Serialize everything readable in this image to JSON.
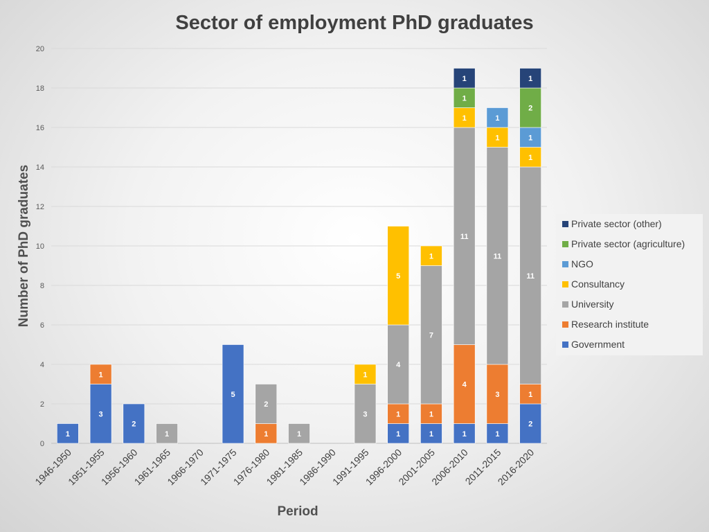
{
  "chart_data": {
    "type": "bar",
    "stacked": true,
    "title": "Sector of employment PhD graduates",
    "xlabel": "Period",
    "ylabel": "Number of PhD graduates",
    "ylim": [
      0,
      20
    ],
    "yticks": [
      0,
      2,
      4,
      6,
      8,
      10,
      12,
      14,
      16,
      18,
      20
    ],
    "grid": true,
    "legend_position": "right",
    "categories": [
      "1946-1950",
      "1951-1955",
      "1956-1960",
      "1961-1965",
      "1966-1970",
      "1971-1975",
      "1976-1980",
      "1981-1985",
      "1986-1990",
      "1991-1995",
      "1996-2000",
      "2001-2005",
      "2006-2010",
      "2011-2015",
      "2016-2020"
    ],
    "series": [
      {
        "name": "Government",
        "color": "#4472C4",
        "values": [
          1,
          3,
          2,
          0,
          0,
          5,
          0,
          0,
          0,
          0,
          1,
          1,
          1,
          1,
          2
        ]
      },
      {
        "name": "Research institute",
        "color": "#ED7D31",
        "values": [
          0,
          1,
          0,
          0,
          0,
          0,
          1,
          0,
          0,
          0,
          1,
          1,
          4,
          3,
          1
        ]
      },
      {
        "name": "University",
        "color": "#A5A5A5",
        "values": [
          0,
          0,
          0,
          1,
          0,
          0,
          2,
          1,
          0,
          3,
          4,
          7,
          11,
          11,
          11
        ]
      },
      {
        "name": "Consultancy",
        "color": "#FFC000",
        "values": [
          0,
          0,
          0,
          0,
          0,
          0,
          0,
          0,
          0,
          1,
          5,
          1,
          1,
          1,
          1
        ]
      },
      {
        "name": "NGO",
        "color": "#5B9BD5",
        "values": [
          0,
          0,
          0,
          0,
          0,
          0,
          0,
          0,
          0,
          0,
          0,
          0,
          0,
          1,
          1
        ]
      },
      {
        "name": "Private sector (agriculture)",
        "color": "#70AD47",
        "values": [
          0,
          0,
          0,
          0,
          0,
          0,
          0,
          0,
          0,
          0,
          0,
          0,
          1,
          0,
          2
        ]
      },
      {
        "name": "Private sector (other)",
        "color": "#264478",
        "values": [
          0,
          0,
          0,
          0,
          0,
          0,
          0,
          0,
          0,
          0,
          0,
          0,
          1,
          0,
          1
        ]
      }
    ]
  }
}
